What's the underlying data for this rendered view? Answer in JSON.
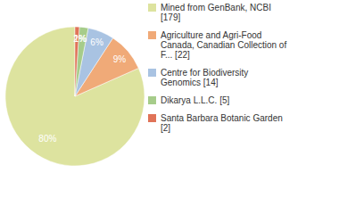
{
  "chart_data": {
    "type": "pie",
    "categories": [
      "Mined from GenBank, NCBI [179]",
      "Agriculture and Agri-Food Canada, Canadian Collection of F... [22]",
      "Centre for Biodiversity Genomics [14]",
      "Dikarya L.L.C. [5]",
      "Santa Barbara Botanic Garden [2]"
    ],
    "values": [
      80,
      9,
      6,
      2,
      1
    ],
    "value_labels": [
      "80%",
      "9%",
      "6%",
      "2%",
      "1%"
    ],
    "colors": [
      "#dde39f",
      "#f0aa78",
      "#a9c3e2",
      "#a6cc8a",
      "#e07358"
    ],
    "data_labels": true,
    "legend": "right"
  }
}
